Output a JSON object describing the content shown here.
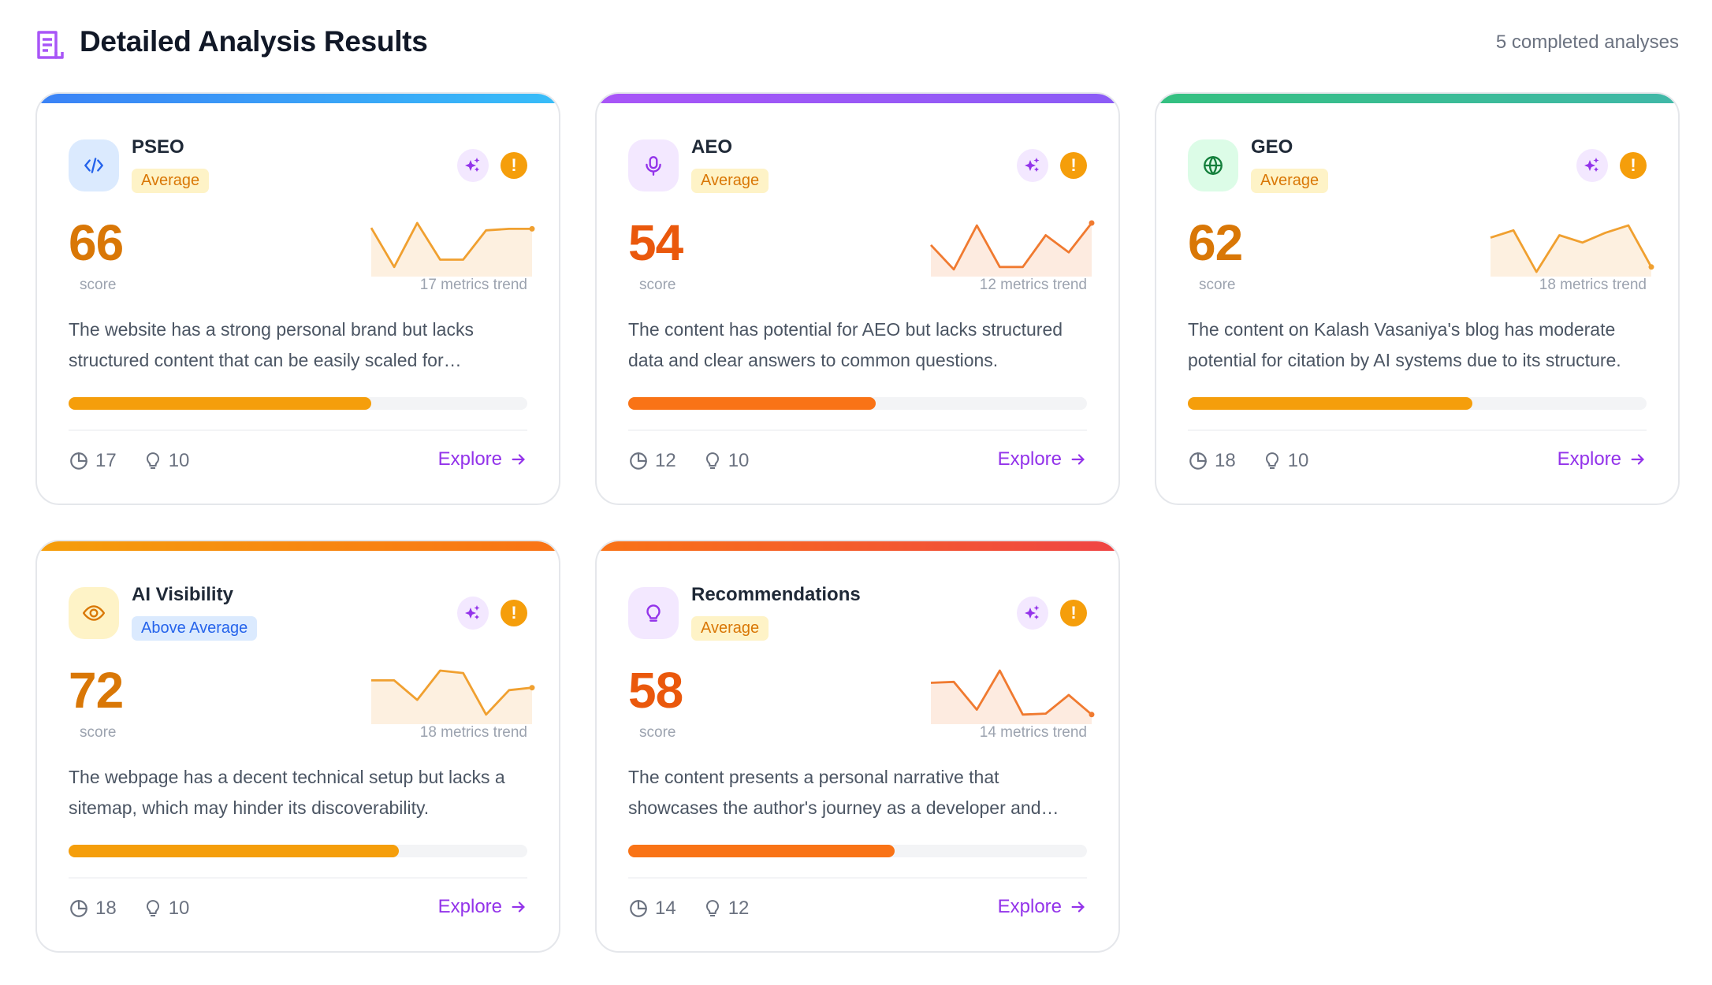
{
  "header": {
    "title": "Detailed Analysis Results",
    "count": "5 completed analyses",
    "icon": "document-list-icon"
  },
  "score_label": "score",
  "explore_label": "Explore",
  "cards": [
    {
      "name": "PSEO",
      "icon": "code-icon",
      "icon_color": "#2563eb",
      "icon_bg": "#dbeafe",
      "bar": [
        "#3b82f6",
        "#38bdf8"
      ],
      "badge": "Average",
      "badge_bg": "#fef3c7",
      "badge_color": "#d97706",
      "score": "66",
      "score_color": "#d97706",
      "trend_label": "17 metrics trend",
      "trend": [
        0.9,
        0.1,
        1.0,
        0.25,
        0.25,
        0.85,
        0.88,
        0.88
      ],
      "trend_color": "#f0a030",
      "fill": "#fdf0e0",
      "description": "The website has a strong personal brand but lacks structured content that can be easily scaled for programmatic SEO.",
      "progress": 66,
      "progress_color": "#f59e0b",
      "metrics": "17",
      "recommendations": "10"
    },
    {
      "name": "AEO",
      "icon": "microphone-icon",
      "icon_color": "#9333ea",
      "icon_bg": "#f3e8ff",
      "bar": [
        "#a855f7",
        "#8b5cf6"
      ],
      "badge": "Average",
      "badge_bg": "#fef3c7",
      "badge_color": "#d97706",
      "score": "54",
      "score_color": "#ea580c",
      "trend_label": "12 metrics trend",
      "trend": [
        0.55,
        0.05,
        0.95,
        0.1,
        0.1,
        0.75,
        0.4,
        1.0
      ],
      "trend_color": "#f07a30",
      "fill": "#fdebe0",
      "description": "The content has potential for AEO but lacks structured data and clear answers to common questions.",
      "progress": 54,
      "progress_color": "#f97316",
      "metrics": "12",
      "recommendations": "10"
    },
    {
      "name": "GEO",
      "icon": "globe-icon",
      "icon_color": "#15803d",
      "icon_bg": "#dcfce7",
      "bar": [
        "#34c080",
        "#40b8a8"
      ],
      "badge": "Average",
      "badge_bg": "#fef3c7",
      "badge_color": "#d97706",
      "score": "62",
      "score_color": "#d97706",
      "trend_label": "18 metrics trend",
      "trend": [
        0.7,
        0.85,
        0.0,
        0.75,
        0.6,
        0.8,
        0.95,
        0.1
      ],
      "trend_color": "#f0a030",
      "fill": "#fdf0e0",
      "description": "The content on Kalash Vasaniya's blog has moderate potential for citation by AI systems due to its structure.",
      "progress": 62,
      "progress_color": "#f59e0b",
      "metrics": "18",
      "recommendations": "10"
    },
    {
      "name": "AI Visibility",
      "icon": "eye-icon",
      "icon_color": "#d97706",
      "icon_bg": "#fef3c7",
      "bar": [
        "#f59e0b",
        "#f97316"
      ],
      "badge": "Above Average",
      "badge_bg": "#dbeafe",
      "badge_color": "#2563eb",
      "score": "72",
      "score_color": "#d97706",
      "trend_label": "18 metrics trend",
      "trend": [
        0.8,
        0.8,
        0.4,
        1.0,
        0.95,
        0.1,
        0.6,
        0.65
      ],
      "trend_color": "#f0a030",
      "fill": "#fdf0e0",
      "description": "The webpage has a decent technical setup but lacks a sitemap, which may hinder its discoverability.",
      "progress": 72,
      "progress_color": "#f59e0b",
      "metrics": "18",
      "recommendations": "10"
    },
    {
      "name": "Recommendations",
      "icon": "lightbulb-icon",
      "icon_color": "#9333ea",
      "icon_bg": "#f3e8ff",
      "bar": [
        "#f97316",
        "#ef4444"
      ],
      "badge": "Average",
      "badge_bg": "#fef3c7",
      "badge_color": "#d97706",
      "score": "58",
      "score_color": "#ea580c",
      "trend_label": "14 metrics trend",
      "trend": [
        0.75,
        0.77,
        0.2,
        1.0,
        0.1,
        0.12,
        0.5,
        0.1
      ],
      "trend_color": "#f07a30",
      "fill": "#fdebe0",
      "description": "The content presents a personal narrative that showcases the author's journey as a developer and creator.",
      "progress": 58,
      "progress_color": "#f97316",
      "metrics": "14",
      "recommendations": "12"
    }
  ]
}
